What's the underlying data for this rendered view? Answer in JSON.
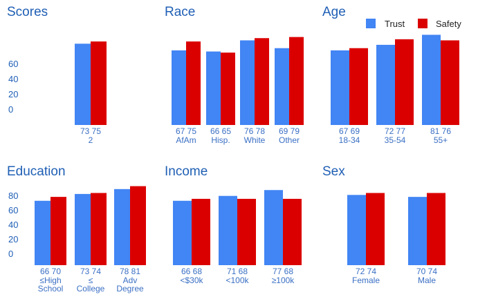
{
  "colors": {
    "trust": "#4285f4",
    "safety": "#db0000",
    "text": "#1f5fb5",
    "label": "#3a6fc4"
  },
  "legend": {
    "position": "top-right"
  },
  "chart_data": [
    {
      "type": "bar",
      "title": "Scores",
      "categories": [
        "2"
      ],
      "series": [
        {
          "name": "Trust",
          "values": [
            73
          ]
        },
        {
          "name": "Safety",
          "values": [
            75
          ]
        }
      ],
      "ylim": [
        0,
        80
      ],
      "yticks": [
        "60",
        "40",
        "20",
        "0"
      ]
    },
    {
      "type": "bar",
      "title": "Race",
      "categories": [
        "AfAm",
        "Hisp.",
        "White",
        "Other"
      ],
      "series": [
        {
          "name": "Trust",
          "values": [
            67,
            66,
            76,
            69
          ]
        },
        {
          "name": "Safety",
          "values": [
            75,
            65,
            78,
            79
          ]
        }
      ],
      "ylim": [
        0,
        80
      ]
    },
    {
      "type": "bar",
      "title": "Age",
      "categories": [
        "18-34",
        "35-54",
        "55+"
      ],
      "series": [
        {
          "name": "Trust",
          "values": [
            67,
            72,
            81
          ]
        },
        {
          "name": "Safety",
          "values": [
            69,
            77,
            76
          ]
        }
      ],
      "ylim": [
        0,
        80
      ]
    },
    {
      "type": "bar",
      "title": "Education",
      "categories": [
        [
          "≤High",
          "School"
        ],
        [
          "≤",
          "College"
        ],
        [
          "Adv",
          "Degree"
        ]
      ],
      "series": [
        {
          "name": "Trust",
          "values": [
            66,
            73,
            78
          ]
        },
        {
          "name": "Safety",
          "values": [
            70,
            74,
            81
          ]
        }
      ],
      "ylim": [
        0,
        80
      ],
      "yticks": [
        "80",
        "60",
        "40",
        "20",
        "0"
      ]
    },
    {
      "type": "bar",
      "title": "Income",
      "categories": [
        "<$30k",
        "<100k",
        "≥100k"
      ],
      "series": [
        {
          "name": "Trust",
          "values": [
            66,
            71,
            77
          ]
        },
        {
          "name": "Safety",
          "values": [
            68,
            68,
            68
          ]
        }
      ],
      "ylim": [
        0,
        80
      ]
    },
    {
      "type": "bar",
      "title": "Sex",
      "categories": [
        "Female",
        "Male"
      ],
      "series": [
        {
          "name": "Trust",
          "values": [
            72,
            70
          ]
        },
        {
          "name": "Safety",
          "values": [
            74,
            74
          ]
        }
      ],
      "ylim": [
        0,
        80
      ]
    }
  ]
}
